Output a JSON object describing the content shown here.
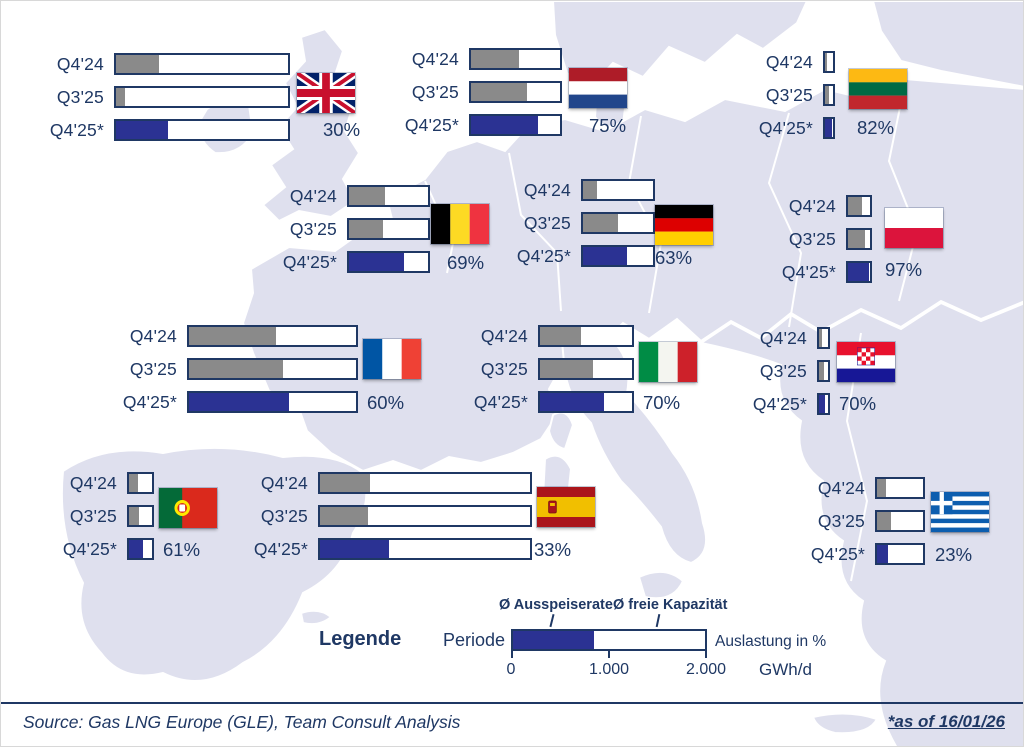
{
  "colors": {
    "text": "#1F3864",
    "bar_border": "#1F3864",
    "fill_gray": "#8A8A8A",
    "fill_blue": "#2B3293",
    "map_land": "#DFE0EE"
  },
  "legend": {
    "title": "Legende",
    "periode_label": "Periode",
    "outflow_label": "Ø Ausspeiserate",
    "free_capacity_label": "Ø freie Kapazität",
    "utilization_label": "Auslastung in %",
    "axis_ticks": [
      "0",
      "1.000",
      "2.000"
    ],
    "axis_unit": "GWh/d",
    "example_fill_pct": 42
  },
  "footer": {
    "source": "Source: Gas LNG Europe (GLE), Team Consult Analysis",
    "footnote": "*as of 16/01/26"
  },
  "chart_data": {
    "type": "bar",
    "orientation": "horizontal",
    "periods": [
      "Q4'24",
      "Q3'25",
      "Q4'25*"
    ],
    "axis_ticks_gwhd": [
      0,
      1000,
      2000
    ],
    "axis_unit": "GWh/d",
    "series": [
      {
        "id": "uk",
        "country": "United Kingdom",
        "label": "30%",
        "capacity_gwhd": 1800,
        "utilization_pct": [
          25,
          5,
          30
        ]
      },
      {
        "id": "nl",
        "country": "Netherlands",
        "label": "75%",
        "capacity_gwhd": 950,
        "utilization_pct": [
          54,
          63,
          75
        ]
      },
      {
        "id": "lt",
        "country": "Lithuania",
        "label": "82%",
        "capacity_gwhd": 120,
        "utilization_pct": [
          30,
          50,
          82
        ]
      },
      {
        "id": "be",
        "country": "Belgium",
        "label": "69%",
        "capacity_gwhd": 850,
        "utilization_pct": [
          46,
          43,
          69
        ]
      },
      {
        "id": "de",
        "country": "Germany",
        "label": "63%",
        "capacity_gwhd": 760,
        "utilization_pct": [
          20,
          50,
          63
        ]
      },
      {
        "id": "pl",
        "country": "Poland",
        "label": "97%",
        "capacity_gwhd": 270,
        "utilization_pct": [
          65,
          75,
          97
        ]
      },
      {
        "id": "fr",
        "country": "France",
        "label": "60%",
        "capacity_gwhd": 1750,
        "utilization_pct": [
          52,
          56,
          60
        ]
      },
      {
        "id": "it",
        "country": "Italy",
        "label": "70%",
        "capacity_gwhd": 980,
        "utilization_pct": [
          45,
          58,
          70
        ]
      },
      {
        "id": "hr",
        "country": "Croatia",
        "label": "70%",
        "capacity_gwhd": 130,
        "utilization_pct": [
          30,
          55,
          70
        ]
      },
      {
        "id": "pt",
        "country": "Portugal",
        "label": "61%",
        "capacity_gwhd": 280,
        "utilization_pct": [
          40,
          45,
          61
        ]
      },
      {
        "id": "es",
        "country": "Spain",
        "label": "33%",
        "capacity_gwhd": 2190,
        "utilization_pct": [
          24,
          23,
          33
        ]
      },
      {
        "id": "gr",
        "country": "Greece",
        "label": "23%",
        "capacity_gwhd": 510,
        "utilization_pct": [
          20,
          30,
          23
        ]
      }
    ]
  }
}
